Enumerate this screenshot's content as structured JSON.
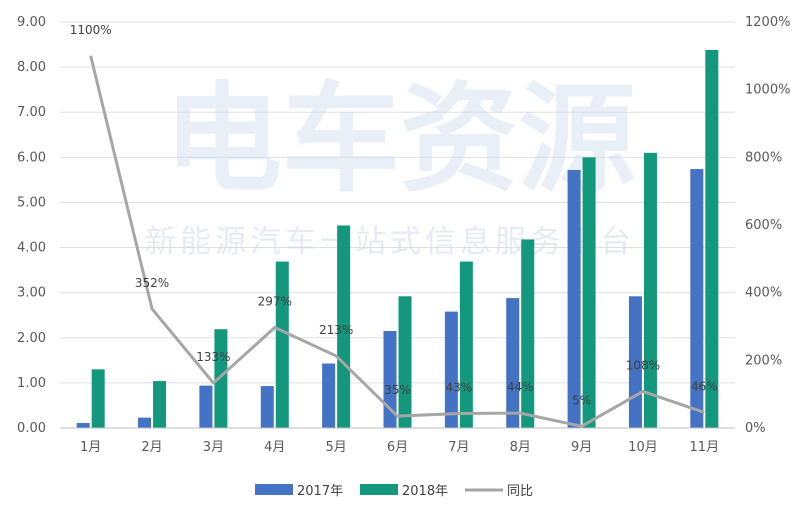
{
  "watermark": {
    "brand": "电车资源",
    "tagline": "新能源汽车一站式信息服务平台"
  },
  "colors": {
    "series_2017": "#4472C4",
    "series_2018": "#13977D",
    "series_yoy": "#A6A6A6",
    "grid": "#E0E0E0",
    "axis": "#BFBFBF"
  },
  "chart_data": {
    "type": "bar",
    "categories": [
      "1月",
      "2月",
      "3月",
      "4月",
      "5月",
      "6月",
      "7月",
      "8月",
      "9月",
      "10月",
      "11月"
    ],
    "series": [
      {
        "name": "2017年",
        "type": "bar",
        "axis": "left",
        "values": [
          0.11,
          0.23,
          0.94,
          0.93,
          1.43,
          2.15,
          2.58,
          2.88,
          5.72,
          2.92,
          5.74
        ]
      },
      {
        "name": "2018年",
        "type": "bar",
        "axis": "left",
        "values": [
          1.3,
          1.04,
          2.19,
          3.69,
          4.49,
          2.92,
          3.69,
          4.18,
          6.0,
          6.1,
          8.38
        ]
      },
      {
        "name": "同比",
        "type": "line",
        "axis": "right",
        "values": [
          1100,
          352,
          133,
          297,
          213,
          35,
          43,
          44,
          5,
          108,
          46
        ],
        "labels": [
          "1100%",
          "352%",
          "133%",
          "297%",
          "213%",
          "35%",
          "43%",
          "44%",
          "5%",
          "108%",
          "46%"
        ]
      }
    ],
    "y_left": {
      "min": 0,
      "max": 9,
      "step": 1,
      "ticks": [
        "0.00",
        "1.00",
        "2.00",
        "3.00",
        "4.00",
        "5.00",
        "6.00",
        "7.00",
        "8.00",
        "9.00"
      ]
    },
    "y_right": {
      "min": 0,
      "max": 1200,
      "step": 200,
      "ticks": [
        "0%",
        "200%",
        "400%",
        "600%",
        "800%",
        "1000%",
        "1200%"
      ]
    },
    "grid": true,
    "legend_position": "bottom"
  }
}
